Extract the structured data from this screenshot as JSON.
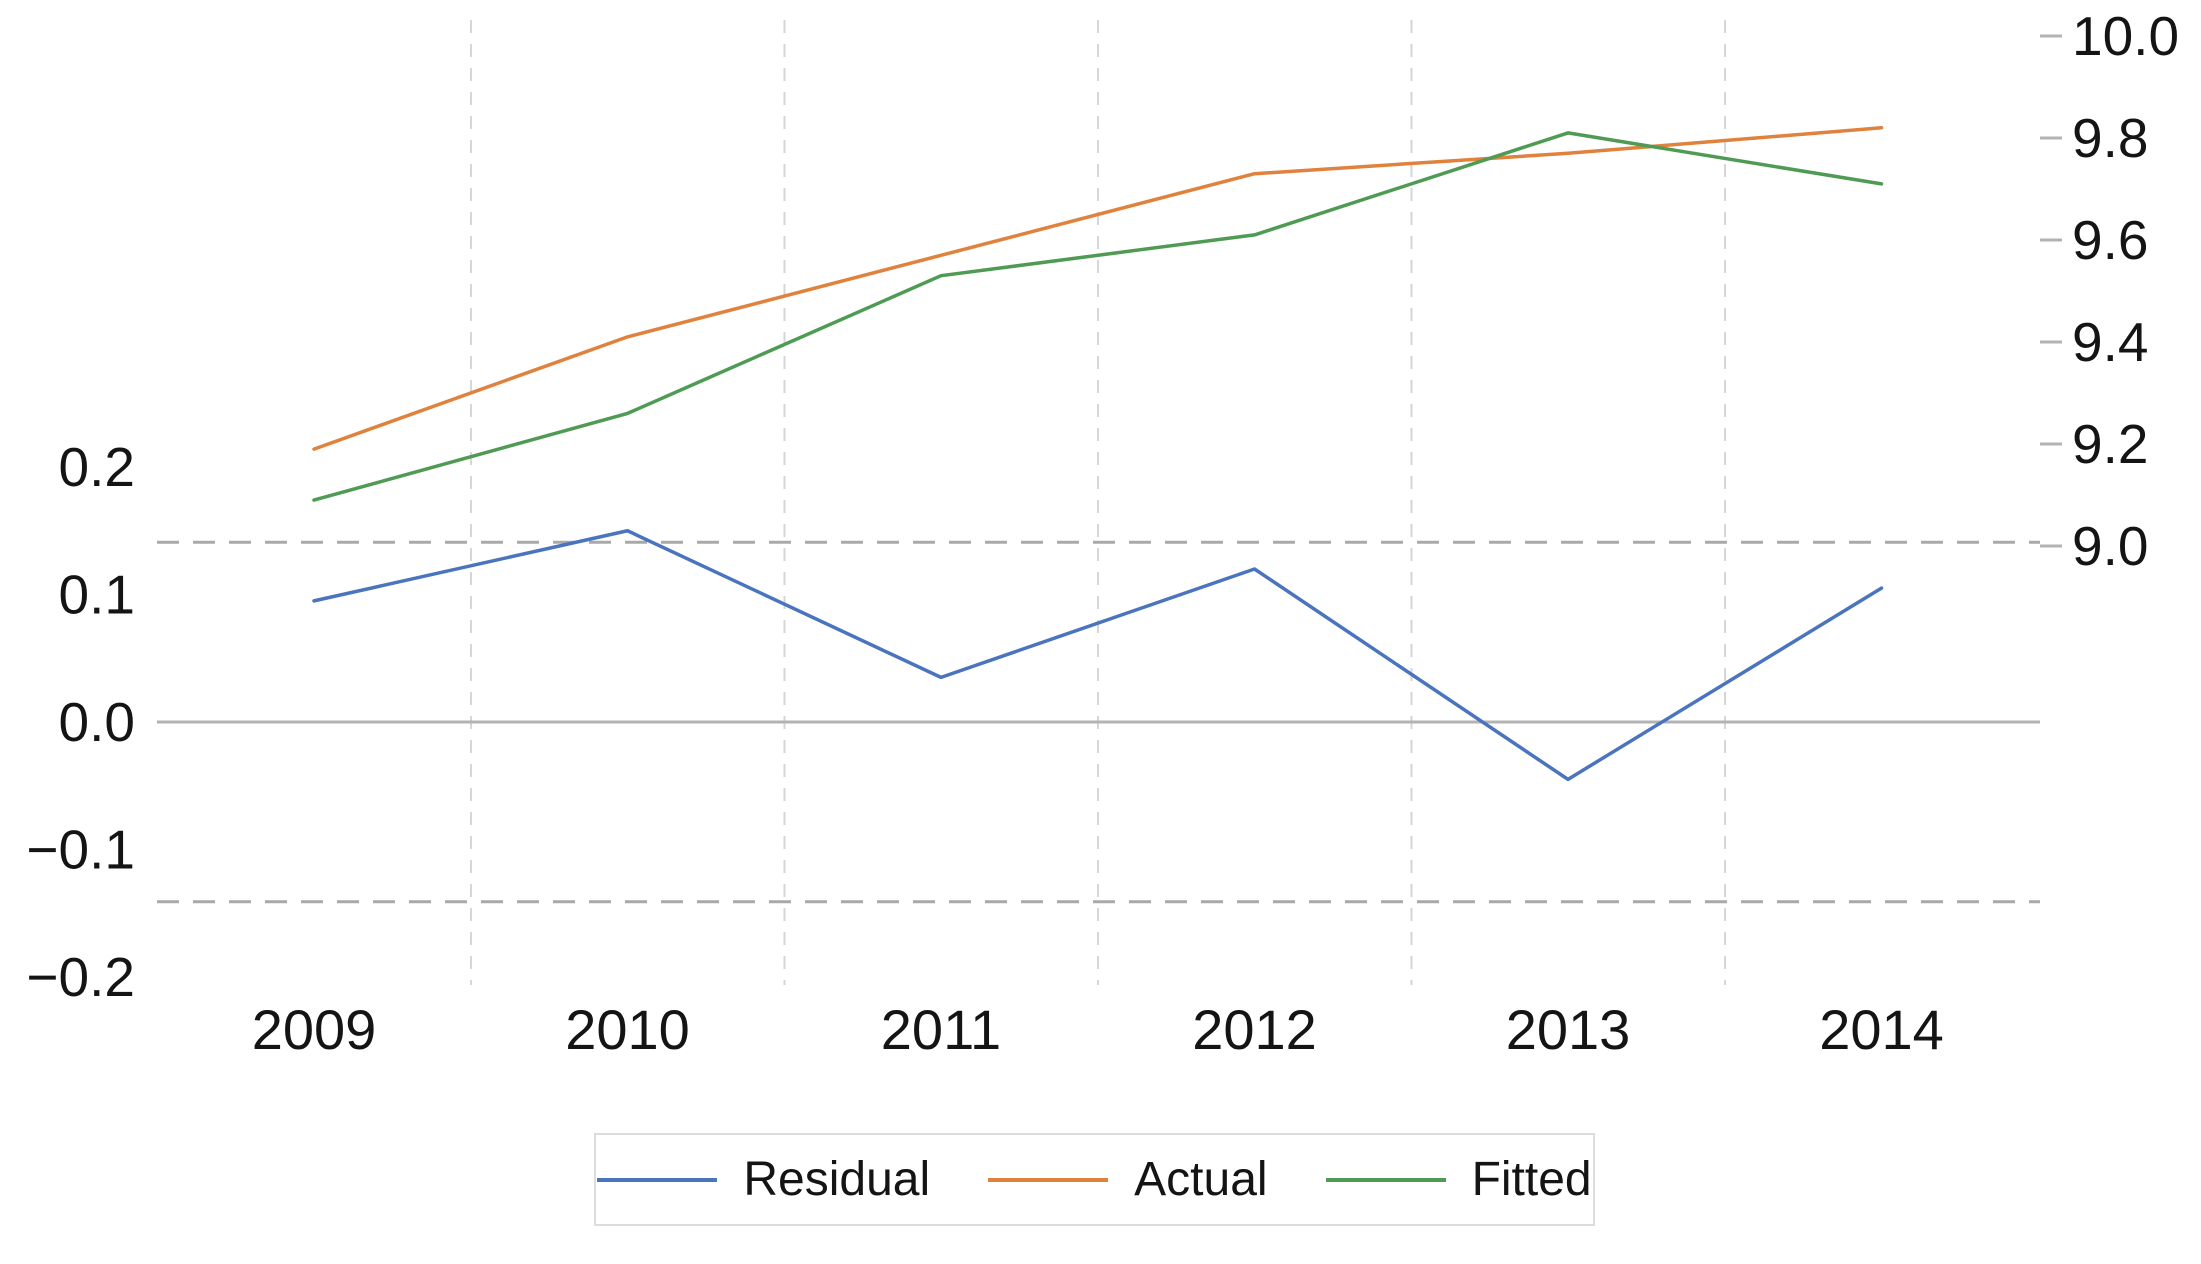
{
  "chart_data": {
    "type": "line",
    "title": "",
    "categories": [
      "2009",
      "2010",
      "2011",
      "2012",
      "2013",
      "2014"
    ],
    "series": [
      {
        "name": "Residual",
        "axis": "left",
        "color": "#4a74be",
        "values": [
          0.095,
          0.15,
          0.035,
          0.12,
          -0.045,
          0.105
        ]
      },
      {
        "name": "Actual",
        "axis": "right",
        "color": "#e0813c",
        "values": [
          9.19,
          9.41,
          9.57,
          9.73,
          9.77,
          9.82
        ]
      },
      {
        "name": "Fitted",
        "axis": "right",
        "color": "#4f9b54",
        "values": [
          9.09,
          9.26,
          9.53,
          9.61,
          9.81,
          9.71
        ]
      }
    ],
    "left_axis": {
      "side": "left",
      "tick_labels": [
        "0.2",
        "0.1",
        "0.0",
        "−0.1",
        "−0.2"
      ],
      "tick_values": [
        0.2,
        0.1,
        0.0,
        -0.1,
        -0.2
      ],
      "range": [
        -0.21,
        0.55
      ]
    },
    "right_axis": {
      "side": "right",
      "tick_labels": [
        "10.0",
        "9.8",
        "9.6",
        "9.4",
        "9.2",
        "9.0"
      ],
      "tick_values": [
        10.0,
        9.8,
        9.6,
        9.4,
        9.2,
        9.0
      ],
      "range": [
        8.14,
        10.03
      ]
    },
    "reference_lines": {
      "zero_left": 0.0,
      "dashed_bands_left": [
        0.141,
        -0.141
      ]
    },
    "grid": {
      "vertical_dashed_between_years": true
    },
    "legend": {
      "position": "bottom-center",
      "entries": [
        "Residual",
        "Actual",
        "Fitted"
      ]
    }
  },
  "colors": {
    "background": "#ffffff",
    "grid": "#d6d6d6",
    "zero_line": "#b3b3b3",
    "band_dash": "#a9a9a9",
    "tick": "#b3b3b3",
    "text": "#141414",
    "legend_border": "#dcdcdc"
  }
}
